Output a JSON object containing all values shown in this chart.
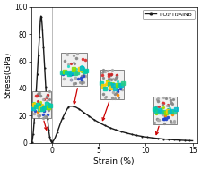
{
  "title": "",
  "xlabel": "Strain (%)",
  "ylabel": "Stress(GPa)",
  "legend_label": "TiO₂/Ti₂AlNb",
  "xlim": [
    -2.2,
    15.5
  ],
  "ylim": [
    0,
    100
  ],
  "xticks": [
    0,
    5,
    10,
    15
  ],
  "yticks": [
    0,
    20,
    40,
    60,
    80,
    100
  ],
  "line_color": "#1a1a1a",
  "line_width": 1.0,
  "background_color": "#ffffff",
  "arrow_color": "#cc0000",
  "vline_x": 0,
  "vline_color": "#bbbbbb",
  "marker_size": 1.5,
  "marker_every": 15,
  "figsize": [
    2.24,
    1.89
  ],
  "dpi": 100
}
